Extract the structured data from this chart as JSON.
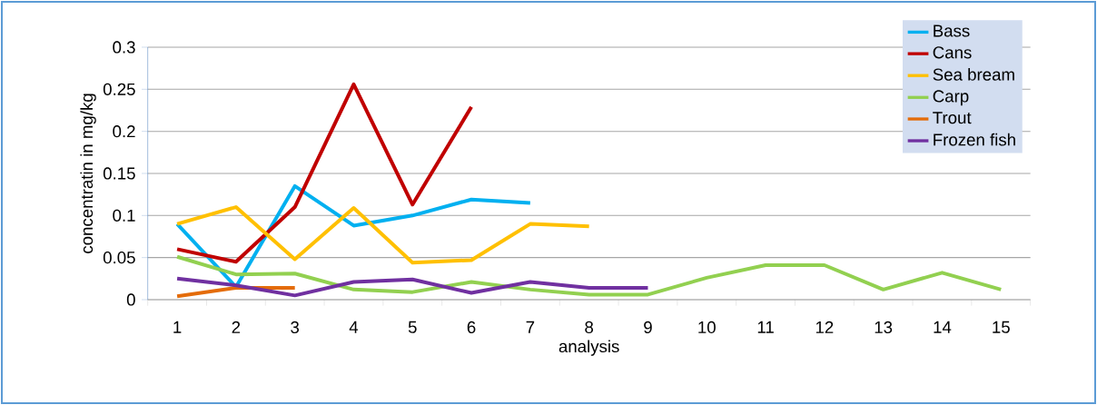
{
  "chart_data": {
    "type": "line",
    "xlabel": "analysis",
    "ylabel": "concentratin in mg/kg",
    "categories": [
      "1",
      "2",
      "3",
      "4",
      "5",
      "6",
      "7",
      "8",
      "9",
      "10",
      "11",
      "12",
      "13",
      "14",
      "15"
    ],
    "series": [
      {
        "name": "Bass",
        "color": "#00b0f0",
        "values": [
          0.09,
          0.015,
          0.135,
          0.088,
          0.1,
          0.119,
          0.115,
          null,
          null,
          null,
          null,
          null,
          null,
          null,
          null
        ]
      },
      {
        "name": "Cans",
        "color": "#c00000",
        "values": [
          0.06,
          0.045,
          0.11,
          0.256,
          0.113,
          0.229,
          null,
          null,
          null,
          null,
          null,
          null,
          null,
          null,
          null
        ]
      },
      {
        "name": "Sea bream",
        "color": "#ffc000",
        "values": [
          0.09,
          0.11,
          0.048,
          0.109,
          0.044,
          0.047,
          0.09,
          0.087,
          null,
          null,
          null,
          null,
          null,
          null,
          null
        ]
      },
      {
        "name": "Carp",
        "color": "#92d050",
        "values": [
          0.051,
          0.03,
          0.031,
          0.012,
          0.009,
          0.021,
          0.012,
          0.006,
          0.006,
          0.026,
          0.041,
          0.041,
          0.012,
          0.032,
          0.012
        ]
      },
      {
        "name": "Trout",
        "color": "#e46c0a",
        "values": [
          0.004,
          0.014,
          0.014,
          null,
          null,
          null,
          null,
          null,
          null,
          null,
          null,
          null,
          null,
          null,
          null
        ]
      },
      {
        "name": "Frozen fish",
        "color": "#7030a0",
        "values": [
          0.025,
          0.017,
          0.005,
          0.021,
          0.024,
          0.008,
          0.021,
          0.014,
          0.014,
          null,
          null,
          null,
          null,
          null,
          null
        ]
      }
    ],
    "ylim": [
      0,
      0.3
    ],
    "yticks": [
      0,
      0.05,
      0.1,
      0.15,
      0.2,
      0.25,
      0.3
    ],
    "grid": "y",
    "legend": "top right",
    "marker": "none",
    "line_style": "solid"
  }
}
